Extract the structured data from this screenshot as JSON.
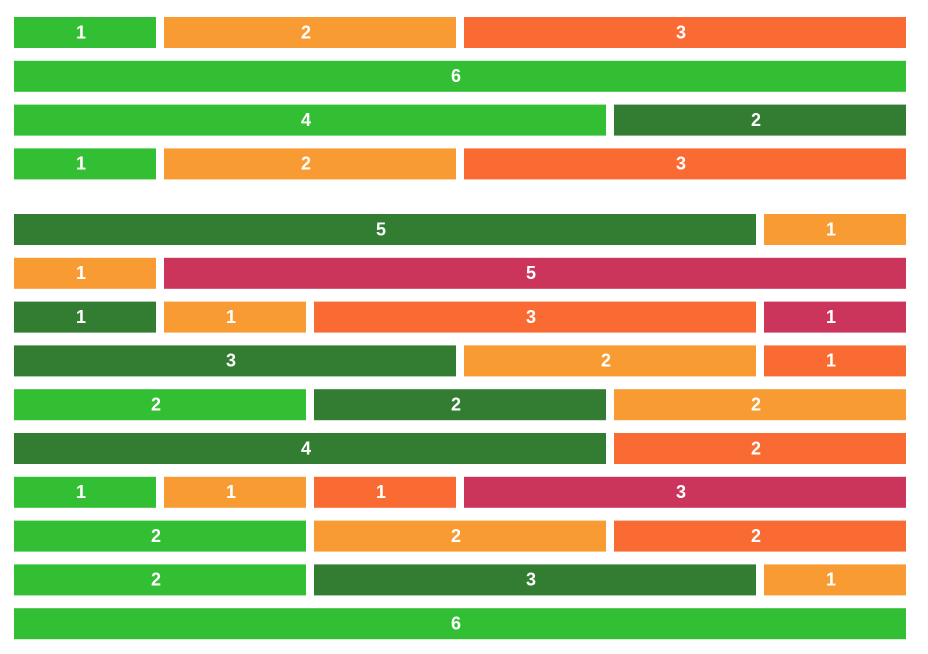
{
  "chart_data": {
    "type": "bar",
    "orientation": "horizontal",
    "stacked": true,
    "total_per_row": 6,
    "grid": false,
    "legend": "none",
    "colors": {
      "green": "#33bf33",
      "darkgreen": "#327d32",
      "orange": "#f99b33",
      "redorange": "#f96b33",
      "crimson": "#cb355b"
    },
    "groups": [
      {
        "rows": [
          [
            {
              "value": 1,
              "color": "green"
            },
            {
              "value": 2,
              "color": "orange"
            },
            {
              "value": 3,
              "color": "redorange"
            }
          ],
          [
            {
              "value": 6,
              "color": "green"
            }
          ],
          [
            {
              "value": 4,
              "color": "green"
            },
            {
              "value": 2,
              "color": "darkgreen"
            }
          ],
          [
            {
              "value": 1,
              "color": "green"
            },
            {
              "value": 2,
              "color": "orange"
            },
            {
              "value": 3,
              "color": "redorange"
            }
          ]
        ]
      },
      {
        "rows": [
          [
            {
              "value": 5,
              "color": "darkgreen"
            },
            {
              "value": 1,
              "color": "orange"
            }
          ],
          [
            {
              "value": 1,
              "color": "orange"
            },
            {
              "value": 5,
              "color": "crimson"
            }
          ],
          [
            {
              "value": 1,
              "color": "darkgreen"
            },
            {
              "value": 1,
              "color": "orange"
            },
            {
              "value": 3,
              "color": "redorange"
            },
            {
              "value": 1,
              "color": "crimson"
            }
          ],
          [
            {
              "value": 3,
              "color": "darkgreen"
            },
            {
              "value": 2,
              "color": "orange"
            },
            {
              "value": 1,
              "color": "redorange"
            }
          ],
          [
            {
              "value": 2,
              "color": "green"
            },
            {
              "value": 2,
              "color": "darkgreen"
            },
            {
              "value": 2,
              "color": "orange"
            }
          ],
          [
            {
              "value": 4,
              "color": "darkgreen"
            },
            {
              "value": 2,
              "color": "redorange"
            }
          ],
          [
            {
              "value": 1,
              "color": "green"
            },
            {
              "value": 1,
              "color": "orange"
            },
            {
              "value": 1,
              "color": "redorange"
            },
            {
              "value": 3,
              "color": "crimson"
            }
          ],
          [
            {
              "value": 2,
              "color": "green"
            },
            {
              "value": 2,
              "color": "orange"
            },
            {
              "value": 2,
              "color": "redorange"
            }
          ],
          [
            {
              "value": 2,
              "color": "green"
            },
            {
              "value": 3,
              "color": "darkgreen"
            },
            {
              "value": 1,
              "color": "orange"
            }
          ],
          [
            {
              "value": 6,
              "color": "green"
            }
          ]
        ]
      }
    ]
  }
}
